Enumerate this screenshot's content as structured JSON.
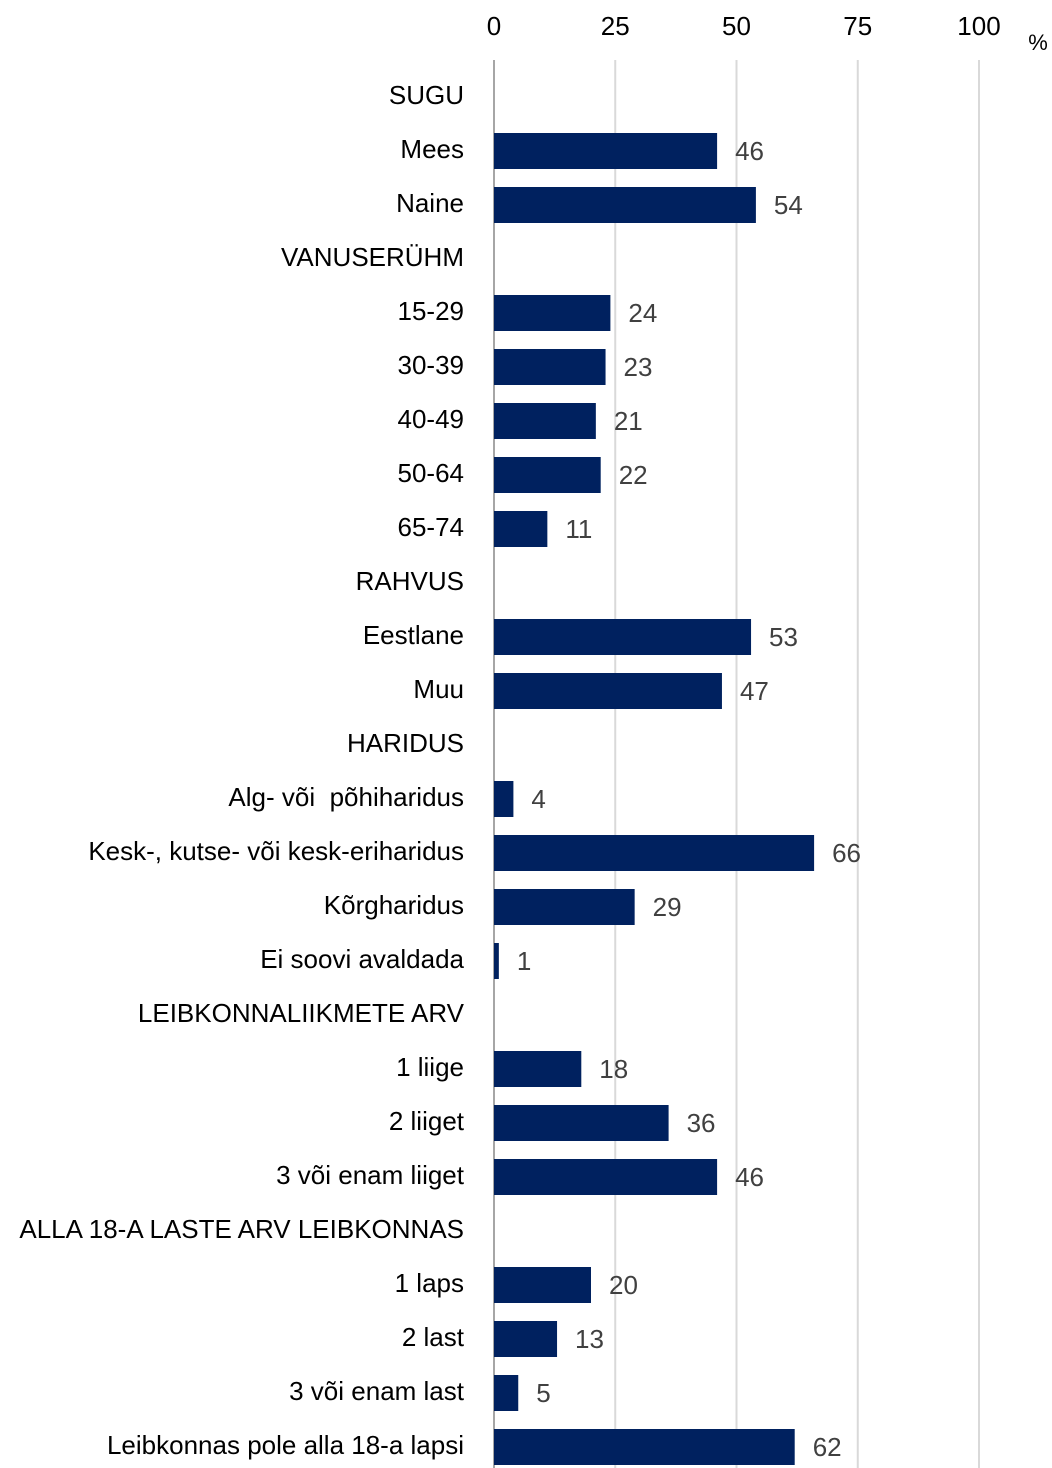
{
  "chart_data": {
    "type": "barh",
    "xlabel": "%",
    "categories": [
      "SUGU",
      "Mees",
      "Naine",
      "VANUSERÜHM",
      "15-29",
      "30-39",
      "40-49",
      "50-64",
      "65-74",
      "RAHVUS",
      "Eestlane",
      "Muu",
      "HARIDUS",
      "Alg- või  põhiharidus",
      "Kesk-, kutse- või kesk-eriharidus",
      "Kõrgharidus",
      "Ei soovi avaldada",
      "LEIBKONNALIIKMETE ARV",
      "1 liige",
      "2 liiget",
      "3 või enam liiget",
      "ALLA 18-A LASTE ARV LEIBKONNAS",
      "1 laps",
      "2 last",
      "3 või enam last",
      "Leibkonnas pole alla 18-a lapsi"
    ],
    "values": [
      null,
      46,
      54,
      null,
      24,
      23,
      21,
      22,
      11,
      null,
      53,
      47,
      null,
      4,
      66,
      29,
      1,
      null,
      18,
      36,
      46,
      null,
      20,
      13,
      5,
      62
    ],
    "color": "#00215f",
    "xlim": [
      0,
      100
    ],
    "xticks": [
      0,
      25,
      50,
      75,
      100
    ],
    "grid": true
  }
}
